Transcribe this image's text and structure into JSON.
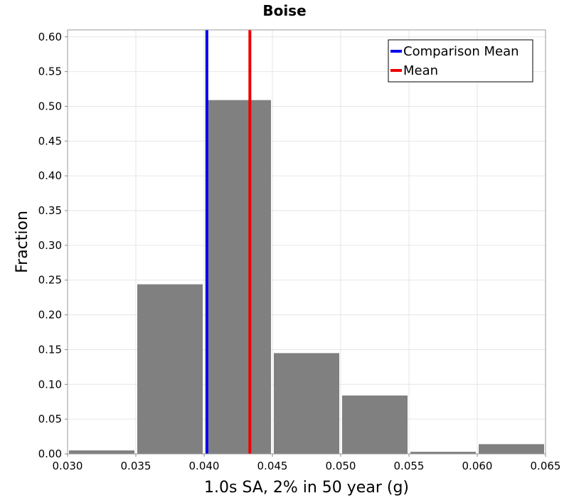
{
  "chart_data": {
    "type": "bar",
    "title": "Boise",
    "xlabel": "1.0s SA, 2% in 50 year (g)",
    "ylabel": "Fraction",
    "xlim": [
      0.03,
      0.065
    ],
    "ylim": [
      0.0,
      0.61
    ],
    "grid": true,
    "x_ticks": [
      "0.030",
      "0.035",
      "0.040",
      "0.045",
      "0.050",
      "0.055",
      "0.060",
      "0.065"
    ],
    "y_ticks": [
      "0.00",
      "0.05",
      "0.10",
      "0.15",
      "0.20",
      "0.25",
      "0.30",
      "0.35",
      "0.40",
      "0.45",
      "0.50",
      "0.55",
      "0.60"
    ],
    "bin_width": 0.005,
    "bins": [
      {
        "start": 0.03,
        "value": 0.005
      },
      {
        "start": 0.035,
        "value": 0.244
      },
      {
        "start": 0.04,
        "value": 0.509
      },
      {
        "start": 0.045,
        "value": 0.145
      },
      {
        "start": 0.05,
        "value": 0.084
      },
      {
        "start": 0.055,
        "value": 0.003
      },
      {
        "start": 0.06,
        "value": 0.014
      }
    ],
    "vlines": [
      {
        "name": "Comparison Mean",
        "x": 0.0402,
        "color": "#0000ee"
      },
      {
        "name": "Mean",
        "x": 0.04335,
        "color": "#ee0000"
      }
    ],
    "bar_color": "#808080",
    "legend_position": "top-right"
  }
}
